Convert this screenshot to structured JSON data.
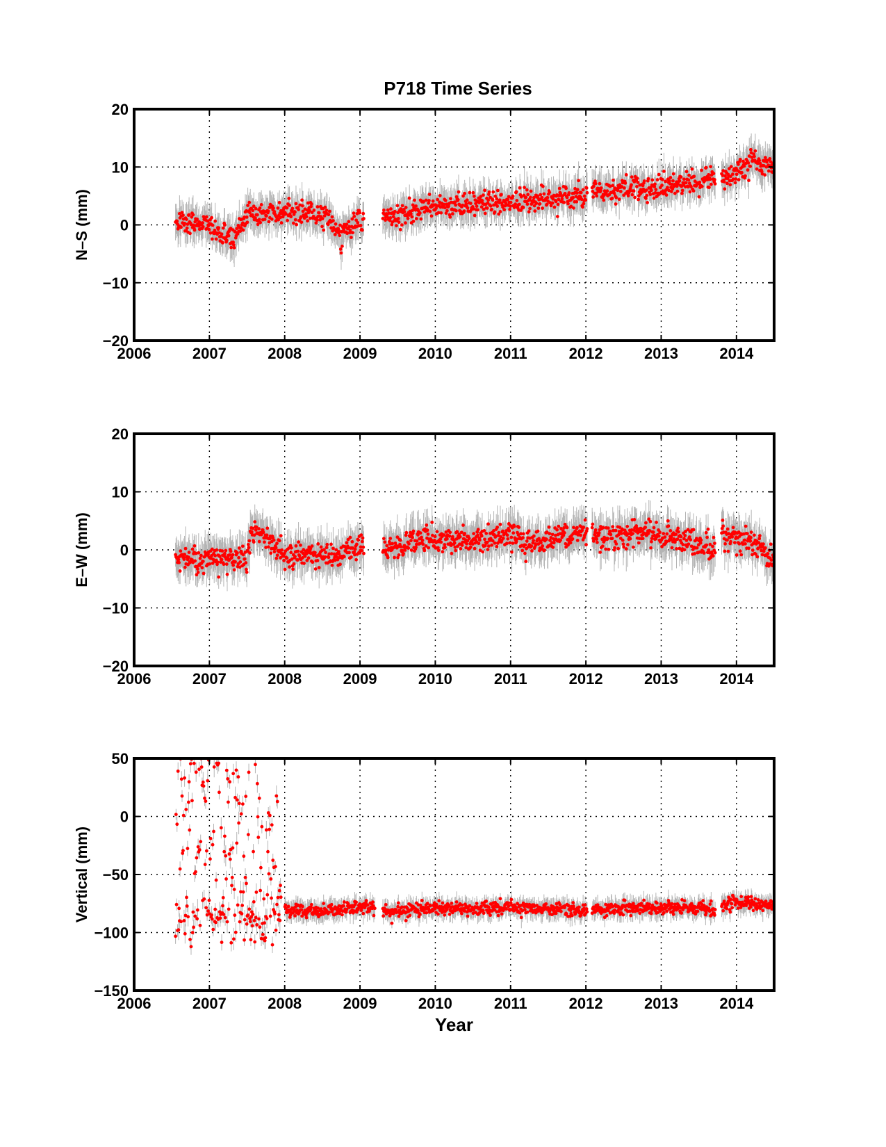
{
  "chart_data": [
    {
      "type": "scatter",
      "title": "P718 Time Series",
      "ylabel": "N–S (mm)",
      "xlabel": "",
      "xlim": [
        2006,
        2014.5
      ],
      "ylim": [
        -20,
        20
      ],
      "x_ticks": [
        2006,
        2007,
        2008,
        2009,
        2010,
        2011,
        2012,
        2013,
        2014
      ],
      "y_ticks": [
        -20,
        -10,
        0,
        10,
        20
      ],
      "grid": true,
      "point_color": "#ff0000",
      "errorbar_color": "#b4b4b4",
      "typical_error_mm": 2.5,
      "scatter_mm": 1.4,
      "data_gaps": [
        [
          2009.05,
          2009.3
        ],
        [
          2012.02,
          2012.08
        ],
        [
          2013.72,
          2013.8
        ]
      ],
      "trend": [
        {
          "x": 2006.55,
          "y": 0.5
        },
        {
          "x": 2006.9,
          "y": 0.5
        },
        {
          "x": 2007.1,
          "y": -1.5
        },
        {
          "x": 2007.3,
          "y": -2.5
        },
        {
          "x": 2007.5,
          "y": 2.0
        },
        {
          "x": 2007.8,
          "y": 2.0
        },
        {
          "x": 2008.5,
          "y": 2.0
        },
        {
          "x": 2008.75,
          "y": -1.5
        },
        {
          "x": 2009.05,
          "y": 1.0
        },
        {
          "x": 2009.3,
          "y": 1.5
        },
        {
          "x": 2010.0,
          "y": 3.0
        },
        {
          "x": 2011.0,
          "y": 4.0
        },
        {
          "x": 2012.0,
          "y": 5.0
        },
        {
          "x": 2012.5,
          "y": 6.0
        },
        {
          "x": 2013.0,
          "y": 6.5
        },
        {
          "x": 2013.7,
          "y": 8.0
        },
        {
          "x": 2013.9,
          "y": 8.0
        },
        {
          "x": 2014.2,
          "y": 11.0
        },
        {
          "x": 2014.5,
          "y": 10.0
        }
      ]
    },
    {
      "type": "scatter",
      "title": "",
      "ylabel": "E–W (mm)",
      "xlabel": "",
      "xlim": [
        2006,
        2014.5
      ],
      "ylim": [
        -20,
        20
      ],
      "x_ticks": [
        2006,
        2007,
        2008,
        2009,
        2010,
        2011,
        2012,
        2013,
        2014
      ],
      "y_ticks": [
        -20,
        -10,
        0,
        10,
        20
      ],
      "grid": true,
      "point_color": "#ff0000",
      "errorbar_color": "#b4b4b4",
      "typical_error_mm": 2.8,
      "scatter_mm": 1.5,
      "data_gaps": [
        [
          2009.05,
          2009.3
        ],
        [
          2012.02,
          2012.08
        ],
        [
          2013.72,
          2013.8
        ]
      ],
      "trend": [
        {
          "x": 2006.55,
          "y": -1.5
        },
        {
          "x": 2007.0,
          "y": -1.5
        },
        {
          "x": 2007.5,
          "y": -1.5
        },
        {
          "x": 2007.55,
          "y": 3.0
        },
        {
          "x": 2007.8,
          "y": 1.5
        },
        {
          "x": 2008.0,
          "y": -1.0
        },
        {
          "x": 2008.6,
          "y": -1.0
        },
        {
          "x": 2009.05,
          "y": 1.0
        },
        {
          "x": 2009.3,
          "y": 0.0
        },
        {
          "x": 2009.9,
          "y": 2.0
        },
        {
          "x": 2010.5,
          "y": 1.5
        },
        {
          "x": 2011.0,
          "y": 2.5
        },
        {
          "x": 2011.3,
          "y": 1.0
        },
        {
          "x": 2012.0,
          "y": 3.5
        },
        {
          "x": 2012.1,
          "y": 2.5
        },
        {
          "x": 2012.8,
          "y": 3.0
        },
        {
          "x": 2013.7,
          "y": 0.5
        },
        {
          "x": 2013.8,
          "y": 2.5
        },
        {
          "x": 2014.0,
          "y": 2.0
        },
        {
          "x": 2014.5,
          "y": -1.5
        }
      ]
    },
    {
      "type": "scatter",
      "title": "",
      "ylabel": "Vertical (mm)",
      "xlabel": "Year",
      "xlim": [
        2006,
        2014.5
      ],
      "ylim": [
        -150,
        50
      ],
      "x_ticks": [
        2006,
        2007,
        2008,
        2009,
        2010,
        2011,
        2012,
        2013,
        2014
      ],
      "y_ticks": [
        -150,
        -100,
        -50,
        0,
        50
      ],
      "grid": true,
      "point_color": "#ff0000",
      "errorbar_color": "#b4b4b4",
      "typical_error_mm": 7,
      "scatter_mm": 4,
      "data_gaps": [
        [
          2007.95,
          2008.0
        ],
        [
          2009.2,
          2009.3
        ],
        [
          2012.02,
          2012.08
        ],
        [
          2013.72,
          2013.8
        ]
      ],
      "noisy_segment": {
        "x_range": [
          2006.55,
          2007.95
        ],
        "y_range": [
          -115,
          50
        ]
      },
      "trend": [
        {
          "x": 2006.55,
          "y": -90
        },
        {
          "x": 2007.8,
          "y": -85
        },
        {
          "x": 2008.0,
          "y": -80
        },
        {
          "x": 2008.5,
          "y": -82
        },
        {
          "x": 2009.0,
          "y": -78
        },
        {
          "x": 2009.3,
          "y": -82
        },
        {
          "x": 2010.0,
          "y": -79
        },
        {
          "x": 2011.0,
          "y": -79
        },
        {
          "x": 2012.0,
          "y": -81
        },
        {
          "x": 2013.0,
          "y": -78
        },
        {
          "x": 2013.7,
          "y": -80
        },
        {
          "x": 2013.9,
          "y": -74
        },
        {
          "x": 2014.5,
          "y": -77
        }
      ]
    }
  ]
}
